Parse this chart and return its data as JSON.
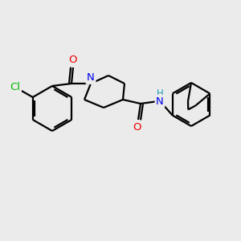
{
  "background_color": "#ebebeb",
  "bond_color": "#000000",
  "atom_colors": {
    "Cl": "#00bb00",
    "N": "#0000ee",
    "O": "#ee0000",
    "NH_color": "#2299bb",
    "C": "#000000"
  },
  "font_size": 9,
  "figsize": [
    3.0,
    3.0
  ],
  "dpi": 100,
  "lw": 1.6
}
